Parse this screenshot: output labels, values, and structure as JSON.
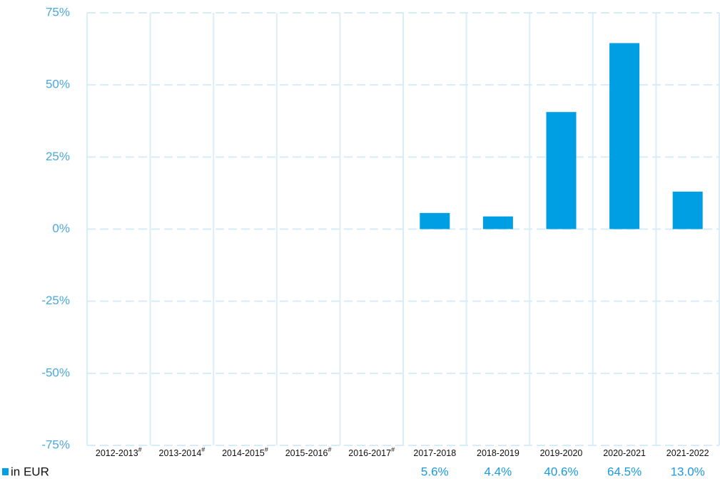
{
  "chart_data": {
    "type": "bar",
    "categories": [
      "2012-2013",
      "2013-2014",
      "2014-2015",
      "2015-2016",
      "2016-2017",
      "2017-2018",
      "2018-2019",
      "2019-2020",
      "2020-2021",
      "2021-2022"
    ],
    "category_notes": [
      "#",
      "#",
      "#",
      "#",
      "#",
      null,
      null,
      null,
      null,
      null
    ],
    "series": [
      {
        "name": "in EUR",
        "color": "#009fe3",
        "values": [
          null,
          null,
          null,
          null,
          null,
          5.6,
          4.4,
          40.6,
          64.5,
          13
        ],
        "value_labels": [
          null,
          null,
          null,
          null,
          null,
          "5.6%",
          "4.4%",
          "40.6%",
          "64.5%",
          "13.0%"
        ]
      }
    ],
    "ylim": [
      -75,
      75
    ],
    "yticks": [
      {
        "value": -75,
        "label": "-75%"
      },
      {
        "value": -50,
        "label": "-50%"
      },
      {
        "value": -25,
        "label": "-25%"
      },
      {
        "value": 0,
        "label": "0%"
      },
      {
        "value": 25,
        "label": "25%"
      },
      {
        "value": 50,
        "label": "50%"
      },
      {
        "value": 75,
        "label": "75%"
      }
    ],
    "grid": true,
    "legend": "bottom-left"
  }
}
